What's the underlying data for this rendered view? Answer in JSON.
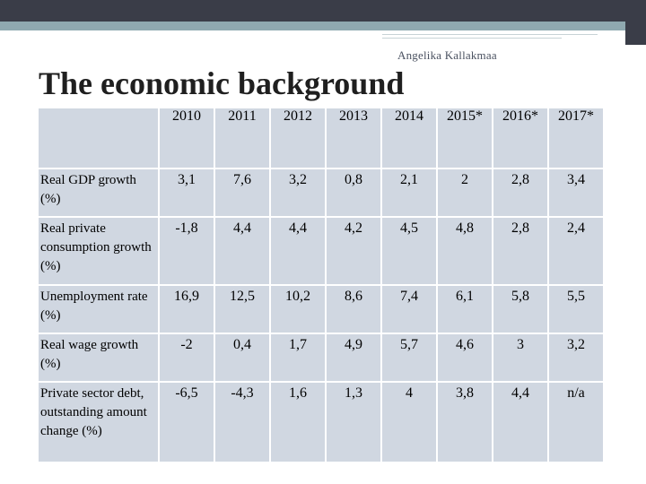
{
  "author": "Angelika Kallakmaa",
  "title": "The economic background",
  "table": {
    "years": [
      "2010",
      "2011",
      "2012",
      "2013",
      "2014",
      "2015*",
      "2016*",
      "2017*"
    ],
    "rows": [
      {
        "label": "Real GDP growth (%)",
        "values": [
          "3,1",
          "7,6",
          "3,2",
          "0,8",
          "2,1",
          "2",
          "2,8",
          "3,4"
        ]
      },
      {
        "label": "Real private consumption growth (%)",
        "values": [
          "-1,8",
          "4,4",
          "4,4",
          "4,2",
          "4,5",
          "4,8",
          "2,8",
          "2,4"
        ]
      },
      {
        "label": "Unemployment rate (%)",
        "values": [
          "16,9",
          "12,5",
          "10,2",
          "8,6",
          "7,4",
          "6,1",
          "5,8",
          "5,5"
        ]
      },
      {
        "label": "Real wage growth (%)",
        "values": [
          "-2",
          "0,4",
          "1,7",
          "4,9",
          "5,7",
          "4,6",
          "3",
          "3,2"
        ]
      },
      {
        "label": "Private sector debt, outstanding amount change (%)",
        "values": [
          "-6,5",
          "-4,3",
          "1,6",
          "1,3",
          "4",
          "3,8",
          "4,4",
          "n/a"
        ]
      }
    ]
  }
}
